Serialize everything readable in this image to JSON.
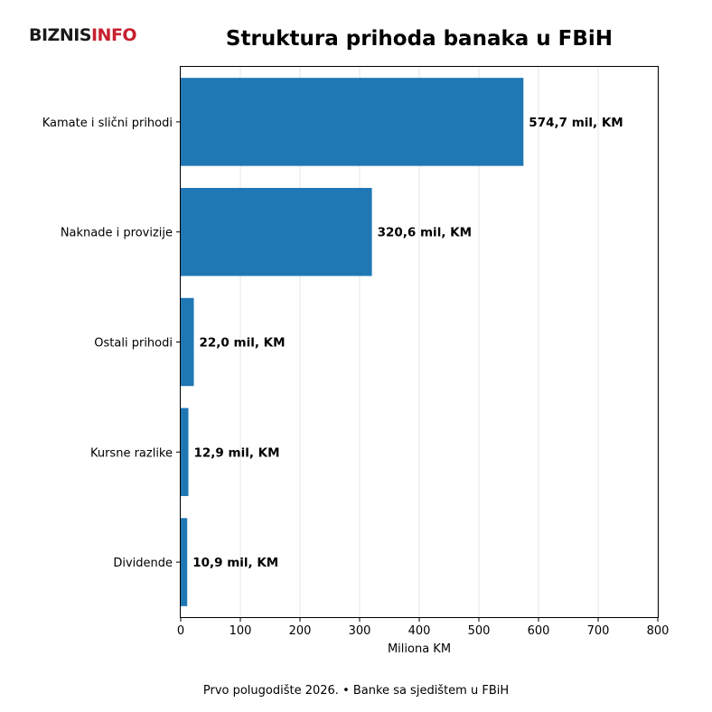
{
  "logo": {
    "part1": "BIZNIS",
    "part2": "INFO",
    "colors": {
      "part1": "#1a1a1a",
      "part2": "#c8202f"
    }
  },
  "chart_data": {
    "type": "bar",
    "orientation": "horizontal",
    "title": "Struktura prihoda banaka u FBiH",
    "xlabel": "Miliona KM",
    "ylabel": "",
    "categories": [
      "Kamate i slični prihodi",
      "Naknade i provizije",
      "Ostali prihodi",
      "Kursne razlike",
      "Dividende"
    ],
    "values": [
      574.7,
      320.6,
      22.0,
      12.9,
      10.9
    ],
    "data_labels": [
      "574,7 mil, KM",
      "320,6 mil, KM",
      "22,0 mil, KM",
      "12,9 mil, KM",
      "10,9 mil, KM"
    ],
    "xlim": [
      0,
      800
    ],
    "xticks": [
      0,
      100,
      200,
      300,
      400,
      500,
      600,
      700,
      800
    ],
    "grid": "vertical",
    "bar_color": "#1f77b4",
    "footnote": "Prvo polugodište 2026. • Banke sa sjedištem u FBiH"
  }
}
